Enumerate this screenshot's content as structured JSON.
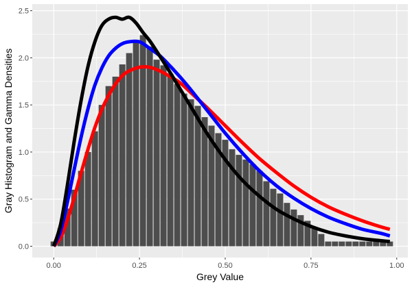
{
  "chart_data": {
    "type": "bar",
    "title": "",
    "xlabel": "Grey Value",
    "ylabel": "Gray Histogram and Gamma Densities",
    "xlim": [
      -0.0625,
      1.0325
    ],
    "ylim": [
      -0.12,
      2.57
    ],
    "x_ticks": [
      0,
      0.25,
      0.5,
      0.75,
      1
    ],
    "x_tick_labels": [
      "0.00",
      "0.25",
      "0.50",
      "0.75",
      "1.00"
    ],
    "y_ticks": [
      0,
      0.5,
      1,
      1.5,
      2,
      2.5
    ],
    "y_tick_labels": [
      "0.0",
      "0.5",
      "1.0",
      "1.5",
      "2.0",
      "2.5"
    ],
    "grid": true,
    "legend": "none",
    "bar_color": "#4d4d4d",
    "panel_color": "#ebebeb",
    "histogram": {
      "bin_width": 0.02,
      "centers": [
        0.0,
        0.02,
        0.04,
        0.06,
        0.08,
        0.1,
        0.12,
        0.14,
        0.16,
        0.18,
        0.2,
        0.22,
        0.24,
        0.26,
        0.28,
        0.3,
        0.32,
        0.34,
        0.36,
        0.38,
        0.4,
        0.42,
        0.44,
        0.46,
        0.48,
        0.5,
        0.52,
        0.54,
        0.56,
        0.58,
        0.6,
        0.62,
        0.64,
        0.66,
        0.68,
        0.7,
        0.72,
        0.74,
        0.76,
        0.78,
        0.8,
        0.82,
        0.84,
        0.86,
        0.88,
        0.9,
        0.92,
        0.94,
        0.96,
        0.98
      ],
      "values": [
        0.05,
        0.19,
        0.4,
        0.6,
        0.8,
        1.0,
        1.22,
        1.5,
        1.7,
        1.8,
        1.93,
        2.05,
        2.18,
        2.24,
        2.12,
        1.98,
        1.92,
        1.83,
        1.72,
        1.62,
        1.56,
        1.49,
        1.37,
        1.28,
        1.2,
        1.13,
        1.03,
        0.97,
        0.92,
        0.87,
        0.8,
        0.69,
        0.61,
        0.56,
        0.46,
        0.39,
        0.33,
        0.27,
        0.2,
        0.13,
        0.05,
        0.05,
        0.05,
        0.05,
        0.05,
        0.05,
        0.05,
        0.05,
        0.05,
        0.05
      ]
    },
    "series": [
      {
        "color": "#000000",
        "x": [
          0.0,
          0.02,
          0.04,
          0.06,
          0.08,
          0.1,
          0.12,
          0.14,
          0.16,
          0.18,
          0.2,
          0.22,
          0.24,
          0.26,
          0.28,
          0.3,
          0.33,
          0.36,
          0.4,
          0.45,
          0.5,
          0.55,
          0.6,
          0.65,
          0.7,
          0.75,
          0.8,
          0.85,
          0.9,
          0.95,
          0.98
        ],
        "values": [
          0.0,
          0.23,
          0.65,
          1.12,
          1.55,
          1.91,
          2.17,
          2.34,
          2.41,
          2.43,
          2.41,
          2.43,
          2.37,
          2.27,
          2.18,
          2.07,
          1.9,
          1.72,
          1.48,
          1.18,
          0.92,
          0.7,
          0.53,
          0.39,
          0.29,
          0.21,
          0.15,
          0.11,
          0.08,
          0.06,
          0.05
        ]
      },
      {
        "color": "#0000ff",
        "x": [
          0.0,
          0.02,
          0.04,
          0.06,
          0.08,
          0.1,
          0.12,
          0.14,
          0.16,
          0.18,
          0.2,
          0.22,
          0.25,
          0.28,
          0.31,
          0.34,
          0.37,
          0.4,
          0.45,
          0.5,
          0.55,
          0.6,
          0.65,
          0.7,
          0.75,
          0.8,
          0.85,
          0.9,
          0.95,
          0.98
        ],
        "values": [
          0.0,
          0.16,
          0.47,
          0.82,
          1.16,
          1.46,
          1.71,
          1.89,
          2.02,
          2.1,
          2.15,
          2.17,
          2.17,
          2.1,
          2.02,
          1.91,
          1.79,
          1.66,
          1.43,
          1.2,
          0.99,
          0.8,
          0.64,
          0.51,
          0.4,
          0.31,
          0.24,
          0.18,
          0.14,
          0.11
        ]
      },
      {
        "color": "#ff0000",
        "x": [
          0.0,
          0.02,
          0.04,
          0.06,
          0.08,
          0.1,
          0.12,
          0.14,
          0.16,
          0.18,
          0.2,
          0.22,
          0.25,
          0.28,
          0.31,
          0.34,
          0.37,
          0.4,
          0.45,
          0.5,
          0.55,
          0.6,
          0.65,
          0.7,
          0.75,
          0.8,
          0.85,
          0.9,
          0.95,
          0.98
        ],
        "values": [
          0.0,
          0.09,
          0.28,
          0.52,
          0.78,
          1.03,
          1.26,
          1.45,
          1.6,
          1.72,
          1.81,
          1.86,
          1.9,
          1.9,
          1.86,
          1.8,
          1.73,
          1.63,
          1.46,
          1.28,
          1.1,
          0.93,
          0.78,
          0.64,
          0.52,
          0.42,
          0.34,
          0.27,
          0.21,
          0.18
        ]
      }
    ]
  }
}
